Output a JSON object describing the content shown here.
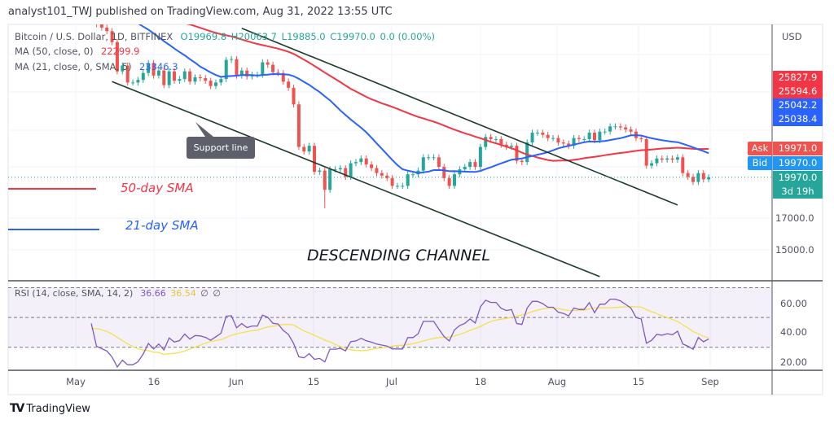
{
  "header": {
    "title": "analyst101_TWJ published on TradingView.com, Aug 31, 2022 13:55 UTC"
  },
  "legend": {
    "symbol": "Bitcoin / U.S. Dollar, 1D, BITFINEX",
    "open": "O19969.8",
    "high": "H20063.7",
    "low": "L19885.0",
    "close": "C19970.0",
    "change": "0.0 (0.00%)",
    "ma50_label": "MA (50, close, 0)",
    "ma50_value": "22299.9",
    "ma21_label": "MA (21, close, 0, SMA, 5)",
    "ma21_value": "23346.3",
    "rsi_label": "RSI (14, close, SMA, 14, 2)",
    "rsi_value": "36.66",
    "rsi_ma_value": "36.54",
    "rsi_extra1": "∅",
    "rsi_extra2": "∅"
  },
  "price_axis": {
    "currency": "USD",
    "labels": [
      {
        "text": "25827.9",
        "color": "#f23645"
      },
      {
        "text": "25594.6",
        "color": "#f23645"
      },
      {
        "text": "25042.2",
        "color": "#2962ff"
      },
      {
        "text": "25038.4",
        "color": "#2962ff"
      },
      {
        "text": "19971.0",
        "color": "#ef5350"
      },
      {
        "text": "19970.0",
        "color": "#2196f3"
      }
    ],
    "ask_label": "Ask",
    "bid_label": "Bid",
    "last_price": "19970.0",
    "countdown": "3d 19h",
    "ticks": [
      "17000.0",
      "15000.0"
    ]
  },
  "rsi_axis": {
    "ticks": [
      "60.00",
      "40.00",
      "20.00"
    ]
  },
  "time_axis": {
    "ticks": [
      "May",
      "16",
      "Jun",
      "15",
      "Jul",
      "18",
      "Aug",
      "15",
      "Sep"
    ]
  },
  "annotations": {
    "support_line": "Support line",
    "sma50": "50-day SMA",
    "sma21": "21-day SMA",
    "channel": "DESCENDING CHANNEL"
  },
  "footer": {
    "brand": "TradingView"
  },
  "chart_data": {
    "type": "candlestick",
    "scale": "log",
    "grid": true,
    "colors": {
      "up": "#26a69a",
      "down": "#ef5350",
      "ma50": "#f23645",
      "ma21": "#2962ff",
      "rsi": "#7e57c2",
      "rsi_ma": "#f5e050",
      "channel": "#1e3a2b"
    },
    "start_date": "2022-05-04",
    "close": [
      39700,
      36500,
      36000,
      35500,
      34000,
      30300,
      31000,
      29000,
      29000,
      29300,
      30100,
      31300,
      29800,
      30400,
      28700,
      30300,
      29200,
      29400,
      30300,
      29100,
      29600,
      29500,
      29200,
      28600,
      29000,
      29400,
      31700,
      31800,
      29800,
      30400,
      29700,
      29900,
      29900,
      31400,
      31100,
      30200,
      30100,
      29100,
      28400,
      26600,
      22500,
      22100,
      22600,
      20400,
      20500,
      19000,
      20600,
      20600,
      20700,
      20000,
      21100,
      21200,
      21500,
      21000,
      20700,
      20300,
      20100,
      19900,
      19300,
      19300,
      19300,
      20200,
      20200,
      20500,
      21600,
      21600,
      21600,
      20800,
      19900,
      19300,
      20200,
      20600,
      20800,
      21200,
      20800,
      22500,
      23400,
      23200,
      23200,
      22700,
      22500,
      22600,
      21300,
      21200,
      22900,
      23800,
      23800,
      23600,
      23300,
      23300,
      22900,
      22800,
      22600,
      23300,
      23200,
      23200,
      23800,
      23100,
      23900,
      23900,
      24400,
      24400,
      24300,
      24100,
      23900,
      23300,
      23200,
      20900,
      21100,
      21500,
      21400,
      21500,
      21400,
      21600,
      20300,
      20000,
      19600,
      20300,
      19800,
      19970
    ],
    "trend_lines": [
      {
        "from": [
          "2022-06-02",
          35900
        ],
        "to": [
          "2022-08-25",
          17900
        ]
      },
      {
        "from": [
          "2022-05-08",
          29100
        ],
        "to": [
          "2022-08-10",
          13500
        ]
      }
    ],
    "rsi_levels": [
      70,
      50,
      30
    ],
    "price_ticks": [
      17000,
      15000
    ]
  }
}
